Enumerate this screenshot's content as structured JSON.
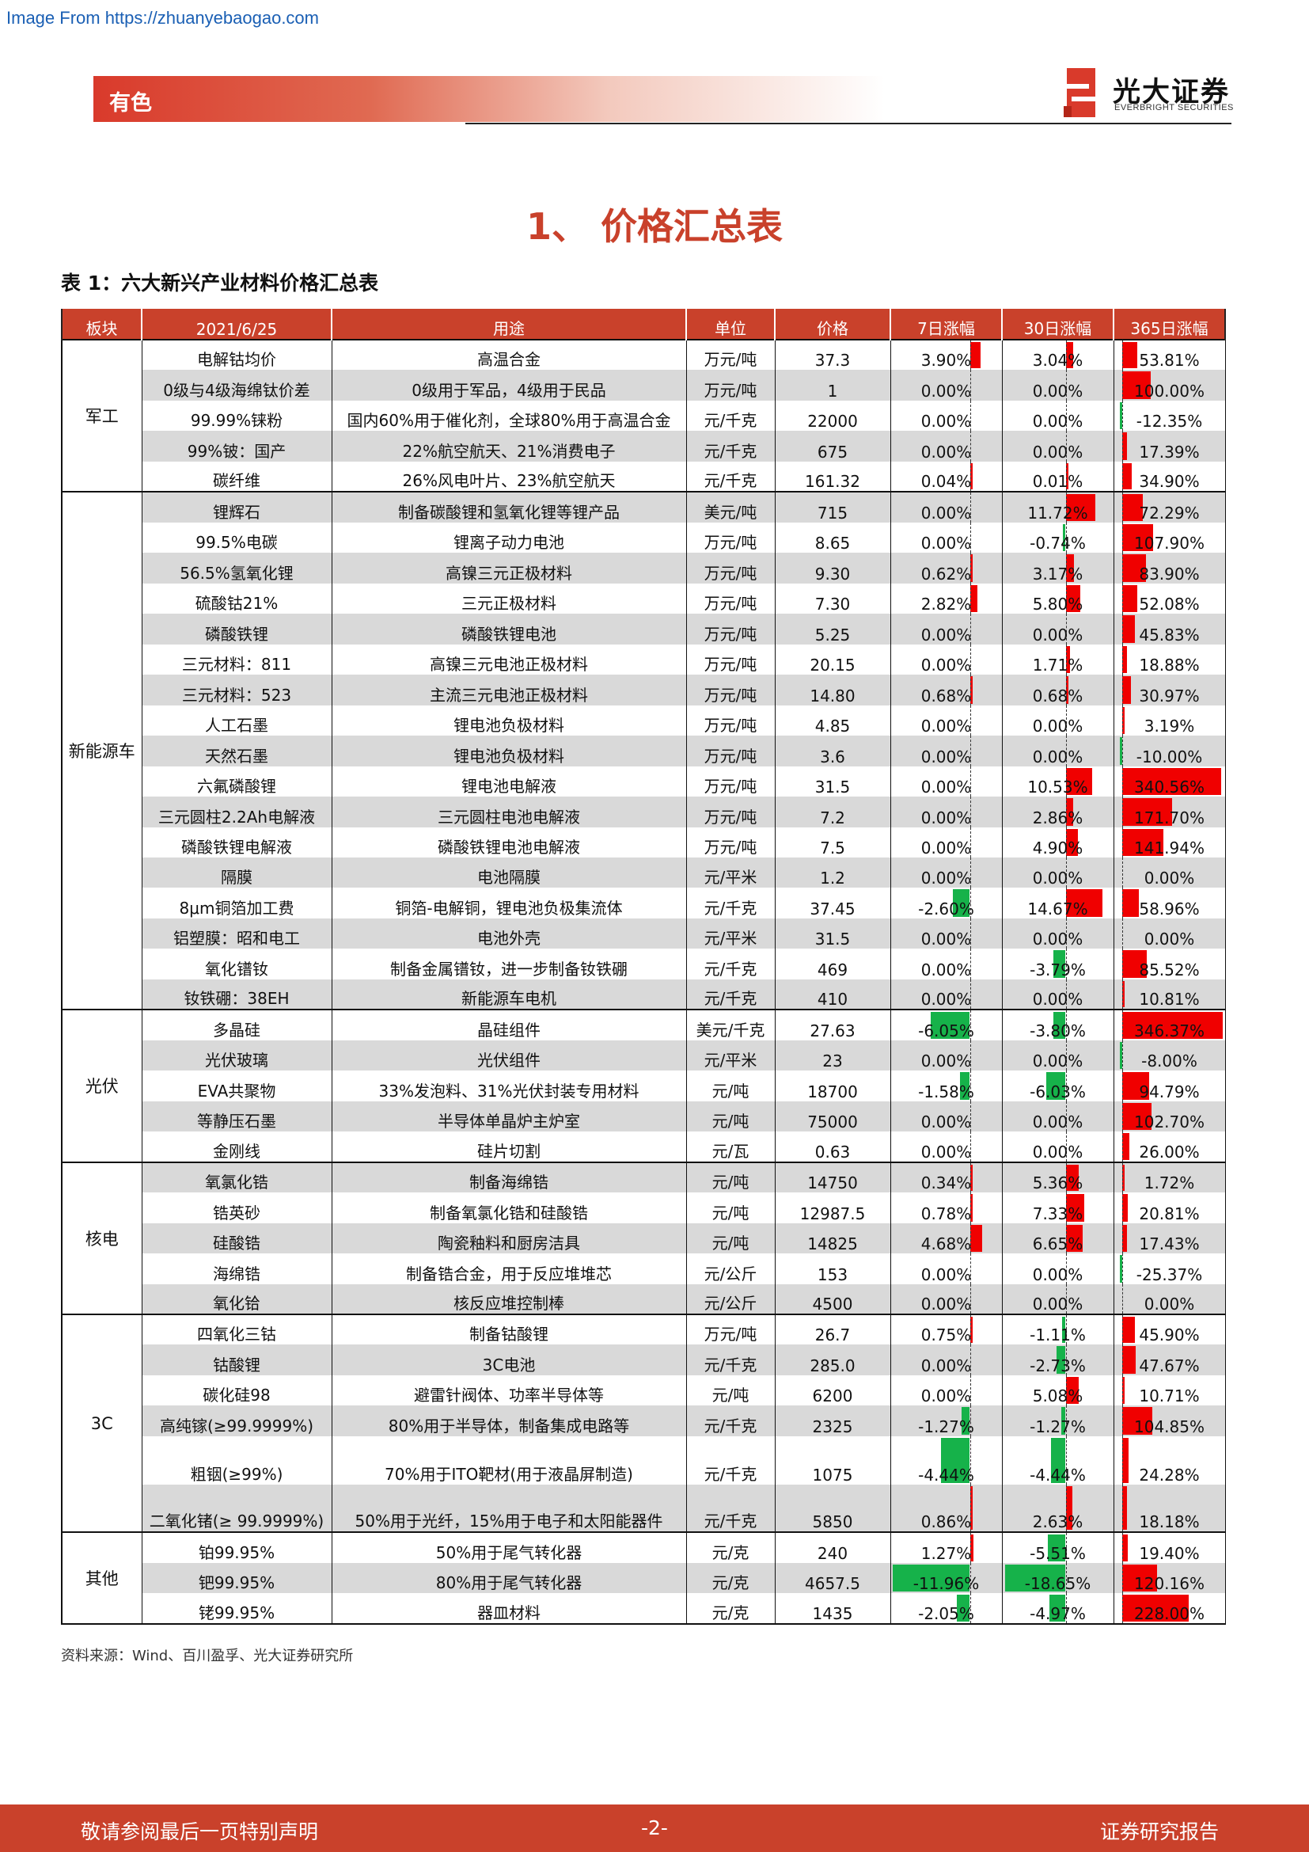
{
  "source_url": "Image From https://zhuanyebaogao.com",
  "header": {
    "band_label": "有色",
    "logo_cn": "光大证券",
    "logo_en": "EVERBRIGHT SECURITIES",
    "brand_color": "#c9412b"
  },
  "section_title": "1、 价格汇总表",
  "table_title": "表 1：六大新兴产业材料价格汇总表",
  "table": {
    "columns": [
      "板块",
      "2021/6/25",
      "用途",
      "单位",
      "价格",
      "7日涨幅",
      "30日涨幅",
      "365日涨幅"
    ],
    "groups": [
      {
        "sector": "军工",
        "rows": [
          {
            "name": "电解钴均价",
            "use": "高温合金",
            "unit": "万元/吨",
            "price": "37.3",
            "d7": "3.90%",
            "d30": "3.04%",
            "d365": "53.81%",
            "v7": 3.9,
            "v30": 3.04,
            "v365": 53.81
          },
          {
            "name": "0级与4级海绵钛价差",
            "use": "0级用于军品，4级用于民品",
            "unit": "万元/吨",
            "price": "1",
            "d7": "0.00%",
            "d30": "0.00%",
            "d365": "100.00%",
            "v7": 0,
            "v30": 0,
            "v365": 100
          },
          {
            "name": "99.99%铼粉",
            "use": "国内60%用于催化剂，全球80%用于高温合金",
            "unit": "元/千克",
            "price": "22000",
            "d7": "0.00%",
            "d30": "0.00%",
            "d365": "-12.35%",
            "v7": 0,
            "v30": 0,
            "v365": -12.35
          },
          {
            "name": "99%铍：国产",
            "use": "22%航空航天、21%消费电子",
            "unit": "元/千克",
            "price": "675",
            "d7": "0.00%",
            "d30": "0.00%",
            "d365": "17.39%",
            "v7": 0,
            "v30": 0,
            "v365": 17.39
          },
          {
            "name": "碳纤维",
            "use": "26%风电叶片、23%航空航天",
            "unit": "元/千克",
            "price": "161.32",
            "d7": "0.04%",
            "d30": "0.01%",
            "d365": "34.90%",
            "v7": 0.04,
            "v30": 0.01,
            "v365": 34.9
          }
        ]
      },
      {
        "sector": "新能源车",
        "rows": [
          {
            "name": "锂辉石",
            "use": "制备碳酸锂和氢氧化锂等锂产品",
            "unit": "美元/吨",
            "price": "715",
            "d7": "0.00%",
            "d30": "11.72%",
            "d365": "72.29%",
            "v7": 0,
            "v30": 11.72,
            "v365": 72.29
          },
          {
            "name": "99.5%电碳",
            "use": "锂离子动力电池",
            "unit": "万元/吨",
            "price": "8.65",
            "d7": "0.00%",
            "d30": "-0.74%",
            "d365": "107.90%",
            "v7": 0,
            "v30": -0.74,
            "v365": 107.9
          },
          {
            "name": "56.5%氢氧化锂",
            "use": "高镍三元正极材料",
            "unit": "万元/吨",
            "price": "9.30",
            "d7": "0.62%",
            "d30": "3.17%",
            "d365": "83.90%",
            "v7": 0.62,
            "v30": 3.17,
            "v365": 83.9
          },
          {
            "name": "硫酸钴21%",
            "use": "三元正极材料",
            "unit": "万元/吨",
            "price": "7.30",
            "d7": "2.82%",
            "d30": "5.80%",
            "d365": "52.08%",
            "v7": 2.82,
            "v30": 5.8,
            "v365": 52.08
          },
          {
            "name": "磷酸铁锂",
            "use": "磷酸铁锂电池",
            "unit": "万元/吨",
            "price": "5.25",
            "d7": "0.00%",
            "d30": "0.00%",
            "d365": "45.83%",
            "v7": 0,
            "v30": 0,
            "v365": 45.83
          },
          {
            "name": "三元材料：811",
            "use": "高镍三元电池正极材料",
            "unit": "万元/吨",
            "price": "20.15",
            "d7": "0.00%",
            "d30": "1.71%",
            "d365": "18.88%",
            "v7": 0,
            "v30": 1.71,
            "v365": 18.88
          },
          {
            "name": "三元材料：523",
            "use": "主流三元电池正极材料",
            "unit": "万元/吨",
            "price": "14.80",
            "d7": "0.68%",
            "d30": "0.68%",
            "d365": "30.97%",
            "v7": 0.68,
            "v30": 0.68,
            "v365": 30.97
          },
          {
            "name": "人工石墨",
            "use": "锂电池负极材料",
            "unit": "万元/吨",
            "price": "4.85",
            "d7": "0.00%",
            "d30": "0.00%",
            "d365": "3.19%",
            "v7": 0,
            "v30": 0,
            "v365": 3.19
          },
          {
            "name": "天然石墨",
            "use": "锂电池负极材料",
            "unit": "万元/吨",
            "price": "3.6",
            "d7": "0.00%",
            "d30": "0.00%",
            "d365": "-10.00%",
            "v7": 0,
            "v30": 0,
            "v365": -10
          },
          {
            "name": "六氟磷酸锂",
            "use": "锂电池电解液",
            "unit": "万元/吨",
            "price": "31.5",
            "d7": "0.00%",
            "d30": "10.53%",
            "d365": "340.56%",
            "v7": 0,
            "v30": 10.53,
            "v365": 340.56
          },
          {
            "name": "三元圆柱2.2Ah电解液",
            "use": "三元圆柱电池电解液",
            "unit": "万元/吨",
            "price": "7.2",
            "d7": "0.00%",
            "d30": "2.86%",
            "d365": "171.70%",
            "v7": 0,
            "v30": 2.86,
            "v365": 171.7
          },
          {
            "name": "磷酸铁锂电解液",
            "use": "磷酸铁锂电池电解液",
            "unit": "万元/吨",
            "price": "7.5",
            "d7": "0.00%",
            "d30": "4.90%",
            "d365": "141.94%",
            "v7": 0,
            "v30": 4.9,
            "v365": 141.94
          },
          {
            "name": "隔膜",
            "use": "电池隔膜",
            "unit": "元/平米",
            "price": "1.2",
            "d7": "0.00%",
            "d30": "0.00%",
            "d365": "0.00%",
            "v7": 0,
            "v30": 0,
            "v365": 0
          },
          {
            "name": "8μm铜箔加工费",
            "use": "铜箔-电解铜，锂电池负极集流体",
            "unit": "元/千克",
            "price": "37.45",
            "d7": "-2.60%",
            "d30": "14.67%",
            "d365": "58.96%",
            "v7": -2.6,
            "v30": 14.67,
            "v365": 58.96
          },
          {
            "name": "铝塑膜：昭和电工",
            "use": "电池外壳",
            "unit": "元/平米",
            "price": "31.5",
            "d7": "0.00%",
            "d30": "0.00%",
            "d365": "0.00%",
            "v7": 0,
            "v30": 0,
            "v365": 0
          },
          {
            "name": "氧化镨钕",
            "use": "制备金属镨钕，进一步制备钕铁硼",
            "unit": "元/千克",
            "price": "469",
            "d7": "0.00%",
            "d30": "-3.79%",
            "d365": "85.52%",
            "v7": 0,
            "v30": -3.79,
            "v365": 85.52
          },
          {
            "name": "钕铁硼：38EH",
            "use": "新能源车电机",
            "unit": "元/千克",
            "price": "410",
            "d7": "0.00%",
            "d30": "0.00%",
            "d365": "10.81%",
            "v7": 0,
            "v30": 0,
            "v365": 10.81
          }
        ]
      },
      {
        "sector": "光伏",
        "rows": [
          {
            "name": "多晶硅",
            "use": "晶硅组件",
            "unit": "美元/千克",
            "price": "27.63",
            "d7": "-6.05%",
            "d30": "-3.80%",
            "d365": "346.37%",
            "v7": -6.05,
            "v30": -3.8,
            "v365": 346.37
          },
          {
            "name": "光伏玻璃",
            "use": "光伏组件",
            "unit": "元/平米",
            "price": "23",
            "d7": "0.00%",
            "d30": "0.00%",
            "d365": "-8.00%",
            "v7": 0,
            "v30": 0,
            "v365": -8
          },
          {
            "name": "EVA共聚物",
            "use": "33%发泡料、31%光伏封装专用材料",
            "unit": "元/吨",
            "price": "18700",
            "d7": "-1.58%",
            "d30": "-6.03%",
            "d365": "94.79%",
            "v7": -1.58,
            "v30": -6.03,
            "v365": 94.79
          },
          {
            "name": "等静压石墨",
            "use": "半导体单晶炉主炉室",
            "unit": "元/吨",
            "price": "75000",
            "d7": "0.00%",
            "d30": "0.00%",
            "d365": "102.70%",
            "v7": 0,
            "v30": 0,
            "v365": 102.7
          },
          {
            "name": "金刚线",
            "use": "硅片切割",
            "unit": "元/瓦",
            "price": "0.63",
            "d7": "0.00%",
            "d30": "0.00%",
            "d365": "26.00%",
            "v7": 0,
            "v30": 0,
            "v365": 26
          }
        ]
      },
      {
        "sector": "核电",
        "rows": [
          {
            "name": "氧氯化锆",
            "use": "制备海绵锆",
            "unit": "元/吨",
            "price": "14750",
            "d7": "0.34%",
            "d30": "5.36%",
            "d365": "1.72%",
            "v7": 0.34,
            "v30": 5.36,
            "v365": 1.72
          },
          {
            "name": "锆英砂",
            "use": "制备氧氯化锆和硅酸锆",
            "unit": "元/吨",
            "price": "12987.5",
            "d7": "0.78%",
            "d30": "7.33%",
            "d365": "20.81%",
            "v7": 0.78,
            "v30": 7.33,
            "v365": 20.81
          },
          {
            "name": "硅酸锆",
            "use": "陶瓷釉料和厨房洁具",
            "unit": "元/吨",
            "price": "14825",
            "d7": "4.68%",
            "d30": "6.65%",
            "d365": "17.43%",
            "v7": 4.68,
            "v30": 6.65,
            "v365": 17.43
          },
          {
            "name": "海绵锆",
            "use": "制备锆合金，用于反应堆堆芯",
            "unit": "元/公斤",
            "price": "153",
            "d7": "0.00%",
            "d30": "0.00%",
            "d365": "-25.37%",
            "v7": 0,
            "v30": 0,
            "v365": -25.37
          },
          {
            "name": "氧化铪",
            "use": "核反应堆控制棒",
            "unit": "元/公斤",
            "price": "4500",
            "d7": "0.00%",
            "d30": "0.00%",
            "d365": "0.00%",
            "v7": 0,
            "v30": 0,
            "v365": 0
          }
        ]
      },
      {
        "sector": "3C",
        "rows": [
          {
            "name": "四氧化三钴",
            "use": "制备钴酸锂",
            "unit": "万元/吨",
            "price": "26.7",
            "d7": "0.75%",
            "d30": "-1.11%",
            "d365": "45.90%",
            "v7": 0.75,
            "v30": -1.11,
            "v365": 45.9
          },
          {
            "name": "钴酸锂",
            "use": "3C电池",
            "unit": "元/千克",
            "price": "285.0",
            "d7": "0.00%",
            "d30": "-2.73%",
            "d365": "47.67%",
            "v7": 0,
            "v30": -2.73,
            "v365": 47.67
          },
          {
            "name": "碳化硅98",
            "use": "避雷针阀体、功率半导体等",
            "unit": "元/吨",
            "price": "6200",
            "d7": "0.00%",
            "d30": "5.08%",
            "d365": "10.71%",
            "v7": 0,
            "v30": 5.08,
            "v365": 10.71
          },
          {
            "name": "高纯镓(≥99.9999%)",
            "use": "80%用于半导体，制备集成电路等",
            "unit": "元/千克",
            "price": "2325",
            "d7": "-1.27%",
            "d30": "-1.27%",
            "d365": "104.85%",
            "v7": -1.27,
            "v30": -1.27,
            "v365": 104.85
          },
          {
            "name": "粗铟(≥99%)",
            "use": "70%用于ITO靶材(用于液晶屏制造)",
            "unit": "元/千克",
            "price": "1075",
            "d7": "-4.44%",
            "d30": "-4.44%",
            "d365": "24.28%",
            "v7": -4.44,
            "v30": -4.44,
            "v365": 24.28,
            "tall": true
          },
          {
            "name": "二氧化锗(≥ 99.9999%)",
            "use": "50%用于光纤，15%用于电子和太阳能器件",
            "unit": "元/千克",
            "price": "5850",
            "d7": "0.86%",
            "d30": "2.63%",
            "d365": "18.18%",
            "v7": 0.86,
            "v30": 2.63,
            "v365": 18.18,
            "tall": true
          }
        ]
      },
      {
        "sector": "其他",
        "rows": [
          {
            "name": "铂99.95%",
            "use": "50%用于尾气转化器",
            "unit": "元/克",
            "price": "240",
            "d7": "1.27%",
            "d30": "-5.51%",
            "d365": "19.40%",
            "v7": 1.27,
            "v30": -5.51,
            "v365": 19.4
          },
          {
            "name": "钯99.95%",
            "use": "80%用于尾气转化器",
            "unit": "元/克",
            "price": "4657.5",
            "d7": "-11.96%",
            "d30": "-18.65%",
            "d365": "120.16%",
            "v7": -11.96,
            "v30": -18.65,
            "v365": 120.16
          },
          {
            "name": "铑99.95%",
            "use": "器皿材料",
            "unit": "元/克",
            "price": "1435",
            "d7": "-2.05%",
            "d30": "-4.97%",
            "d365": "228.00%",
            "v7": -2.05,
            "v30": -4.97,
            "v365": 228
          }
        ]
      }
    ],
    "bar_colors": {
      "positive": "#f00000",
      "negative": "#16b24a"
    }
  },
  "source_note": "资料来源：Wind、百川盈孚、光大证券研究所",
  "footer": {
    "left": "敬请参阅最后一页特别声明",
    "center": "-2-",
    "right": "证券研究报告"
  }
}
